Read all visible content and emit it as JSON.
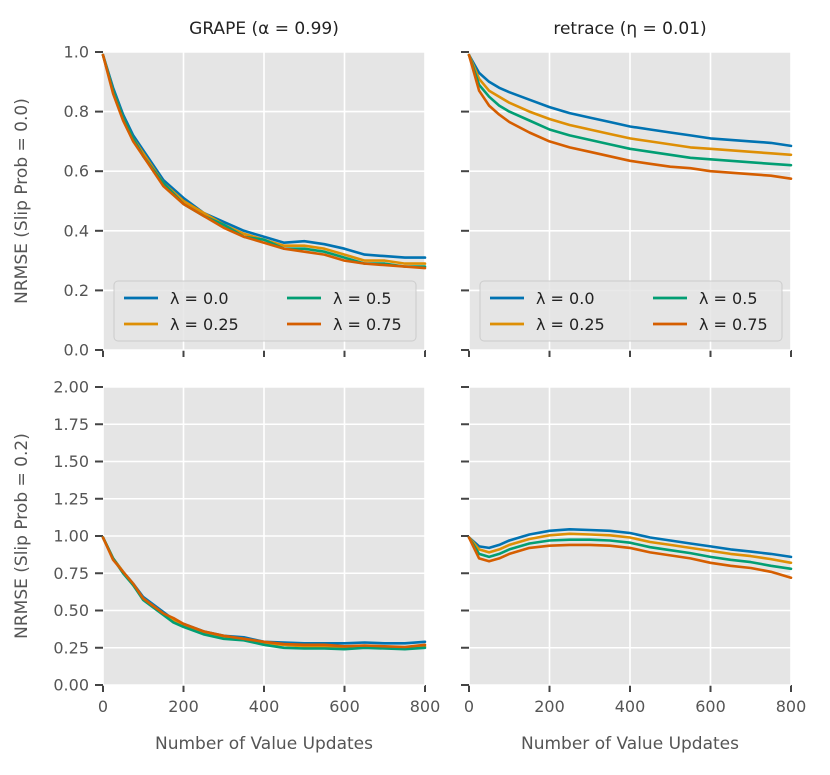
{
  "colors": {
    "lambda_0.0": "#0173b2",
    "lambda_0.25": "#de8f05",
    "lambda_0.5": "#029e73",
    "lambda_0.75": "#d55e00",
    "panel_bg": "#e5e5e5",
    "grid": "#ffffff"
  },
  "chart_data": [
    {
      "type": "line",
      "panel": "top-left",
      "title": "GRAPE (α = 0.99)",
      "xlabel": "",
      "ylabel": "NRMSE (Slip Prob = 0.0)",
      "xlim": [
        0,
        800
      ],
      "ylim": [
        0,
        1.0
      ],
      "xticks": [
        "",
        "",
        "",
        "",
        ""
      ],
      "yticks": [
        "0.0",
        "0.2",
        "0.4",
        "0.6",
        "0.8",
        "1.0"
      ],
      "legend": "lower-left",
      "x": [
        0,
        25,
        50,
        75,
        100,
        150,
        200,
        250,
        300,
        350,
        400,
        450,
        500,
        550,
        600,
        650,
        700,
        750,
        800
      ],
      "series": [
        {
          "name": "λ = 0.0",
          "values": [
            0.99,
            0.88,
            0.79,
            0.72,
            0.67,
            0.57,
            0.51,
            0.46,
            0.43,
            0.4,
            0.38,
            0.36,
            0.365,
            0.355,
            0.34,
            0.32,
            0.315,
            0.31,
            0.31
          ]
        },
        {
          "name": "λ = 0.25",
          "values": [
            0.99,
            0.87,
            0.78,
            0.71,
            0.66,
            0.56,
            0.5,
            0.46,
            0.42,
            0.39,
            0.37,
            0.35,
            0.35,
            0.34,
            0.32,
            0.3,
            0.3,
            0.29,
            0.29
          ]
        },
        {
          "name": "λ = 0.5",
          "values": [
            0.99,
            0.87,
            0.78,
            0.71,
            0.65,
            0.56,
            0.49,
            0.45,
            0.42,
            0.38,
            0.37,
            0.34,
            0.34,
            0.33,
            0.31,
            0.29,
            0.29,
            0.28,
            0.28
          ]
        },
        {
          "name": "λ = 0.75",
          "values": [
            0.99,
            0.86,
            0.77,
            0.7,
            0.65,
            0.55,
            0.49,
            0.45,
            0.41,
            0.38,
            0.36,
            0.34,
            0.33,
            0.32,
            0.3,
            0.29,
            0.285,
            0.28,
            0.275
          ]
        }
      ]
    },
    {
      "type": "line",
      "panel": "top-right",
      "title": "retrace (η = 0.01)",
      "xlabel": "",
      "ylabel": "",
      "xlim": [
        0,
        800
      ],
      "ylim": [
        0,
        1.0
      ],
      "xticks": [
        "",
        "",
        "",
        "",
        ""
      ],
      "yticks": [
        "",
        "",
        "",
        "",
        "",
        ""
      ],
      "legend": "lower-left",
      "x": [
        0,
        25,
        50,
        75,
        100,
        150,
        200,
        250,
        300,
        350,
        400,
        450,
        500,
        550,
        600,
        650,
        700,
        750,
        800
      ],
      "series": [
        {
          "name": "λ = 0.0",
          "values": [
            0.99,
            0.93,
            0.9,
            0.88,
            0.865,
            0.84,
            0.815,
            0.795,
            0.78,
            0.765,
            0.75,
            0.74,
            0.73,
            0.72,
            0.71,
            0.705,
            0.7,
            0.695,
            0.685
          ]
        },
        {
          "name": "λ = 0.25",
          "values": [
            0.99,
            0.91,
            0.87,
            0.85,
            0.83,
            0.8,
            0.775,
            0.755,
            0.74,
            0.725,
            0.71,
            0.7,
            0.69,
            0.68,
            0.675,
            0.67,
            0.665,
            0.66,
            0.655
          ]
        },
        {
          "name": "λ = 0.5",
          "values": [
            0.99,
            0.89,
            0.85,
            0.82,
            0.8,
            0.77,
            0.74,
            0.72,
            0.705,
            0.69,
            0.675,
            0.665,
            0.655,
            0.645,
            0.64,
            0.635,
            0.63,
            0.625,
            0.62
          ]
        },
        {
          "name": "λ = 0.75",
          "values": [
            0.99,
            0.87,
            0.82,
            0.79,
            0.765,
            0.73,
            0.7,
            0.68,
            0.665,
            0.65,
            0.635,
            0.625,
            0.615,
            0.61,
            0.6,
            0.595,
            0.59,
            0.585,
            0.575
          ]
        }
      ]
    },
    {
      "type": "line",
      "panel": "bottom-left",
      "title": "",
      "xlabel": "Number of Value Updates",
      "ylabel": "NRMSE (Slip Prob = 0.2)",
      "xlim": [
        0,
        800
      ],
      "ylim": [
        0,
        2.0
      ],
      "xticks": [
        "0",
        "200",
        "400",
        "600",
        "800"
      ],
      "yticks": [
        "0.00",
        "0.25",
        "0.50",
        "0.75",
        "1.00",
        "1.25",
        "1.50",
        "1.75",
        "2.00"
      ],
      "x": [
        0,
        25,
        50,
        75,
        100,
        150,
        175,
        200,
        250,
        300,
        350,
        400,
        450,
        500,
        550,
        600,
        650,
        700,
        750,
        800
      ],
      "series": [
        {
          "name": "λ = 0.0",
          "values": [
            0.99,
            0.85,
            0.76,
            0.68,
            0.59,
            0.49,
            0.44,
            0.41,
            0.36,
            0.33,
            0.32,
            0.29,
            0.285,
            0.28,
            0.28,
            0.28,
            0.285,
            0.28,
            0.28,
            0.29
          ]
        },
        {
          "name": "λ = 0.25",
          "values": [
            0.99,
            0.85,
            0.76,
            0.67,
            0.58,
            0.48,
            0.43,
            0.4,
            0.35,
            0.32,
            0.31,
            0.28,
            0.27,
            0.26,
            0.26,
            0.25,
            0.255,
            0.255,
            0.25,
            0.26
          ]
        },
        {
          "name": "λ = 0.5",
          "values": [
            0.99,
            0.85,
            0.75,
            0.67,
            0.57,
            0.47,
            0.42,
            0.39,
            0.34,
            0.31,
            0.3,
            0.27,
            0.25,
            0.245,
            0.245,
            0.24,
            0.25,
            0.245,
            0.24,
            0.25
          ]
        },
        {
          "name": "λ = 0.75",
          "values": [
            0.99,
            0.84,
            0.76,
            0.68,
            0.58,
            0.48,
            0.45,
            0.41,
            0.36,
            0.33,
            0.31,
            0.29,
            0.275,
            0.27,
            0.27,
            0.26,
            0.265,
            0.26,
            0.255,
            0.27
          ]
        }
      ]
    },
    {
      "type": "line",
      "panel": "bottom-right",
      "title": "",
      "xlabel": "Number of Value Updates",
      "ylabel": "",
      "xlim": [
        0,
        800
      ],
      "ylim": [
        0,
        2.0
      ],
      "xticks": [
        "0",
        "200",
        "400",
        "600",
        "800"
      ],
      "yticks": [
        "",
        "",
        "",
        "",
        "",
        "",
        "",
        "",
        ""
      ],
      "x": [
        0,
        25,
        50,
        75,
        100,
        150,
        200,
        250,
        300,
        350,
        400,
        450,
        500,
        550,
        600,
        650,
        700,
        750,
        800
      ],
      "series": [
        {
          "name": "λ = 0.0",
          "values": [
            0.99,
            0.93,
            0.92,
            0.94,
            0.97,
            1.01,
            1.035,
            1.045,
            1.04,
            1.035,
            1.02,
            0.99,
            0.97,
            0.95,
            0.93,
            0.91,
            0.895,
            0.88,
            0.86
          ]
        },
        {
          "name": "λ = 0.25",
          "values": [
            0.99,
            0.91,
            0.89,
            0.91,
            0.94,
            0.98,
            1.005,
            1.015,
            1.01,
            1.005,
            0.99,
            0.96,
            0.94,
            0.92,
            0.9,
            0.88,
            0.865,
            0.845,
            0.82
          ]
        },
        {
          "name": "λ = 0.5",
          "values": [
            0.99,
            0.88,
            0.86,
            0.88,
            0.91,
            0.95,
            0.97,
            0.975,
            0.975,
            0.97,
            0.955,
            0.925,
            0.905,
            0.885,
            0.86,
            0.84,
            0.825,
            0.8,
            0.78
          ]
        },
        {
          "name": "λ = 0.75",
          "values": [
            0.99,
            0.85,
            0.83,
            0.85,
            0.88,
            0.92,
            0.935,
            0.94,
            0.94,
            0.935,
            0.92,
            0.89,
            0.87,
            0.85,
            0.82,
            0.8,
            0.785,
            0.76,
            0.72
          ]
        }
      ]
    }
  ]
}
